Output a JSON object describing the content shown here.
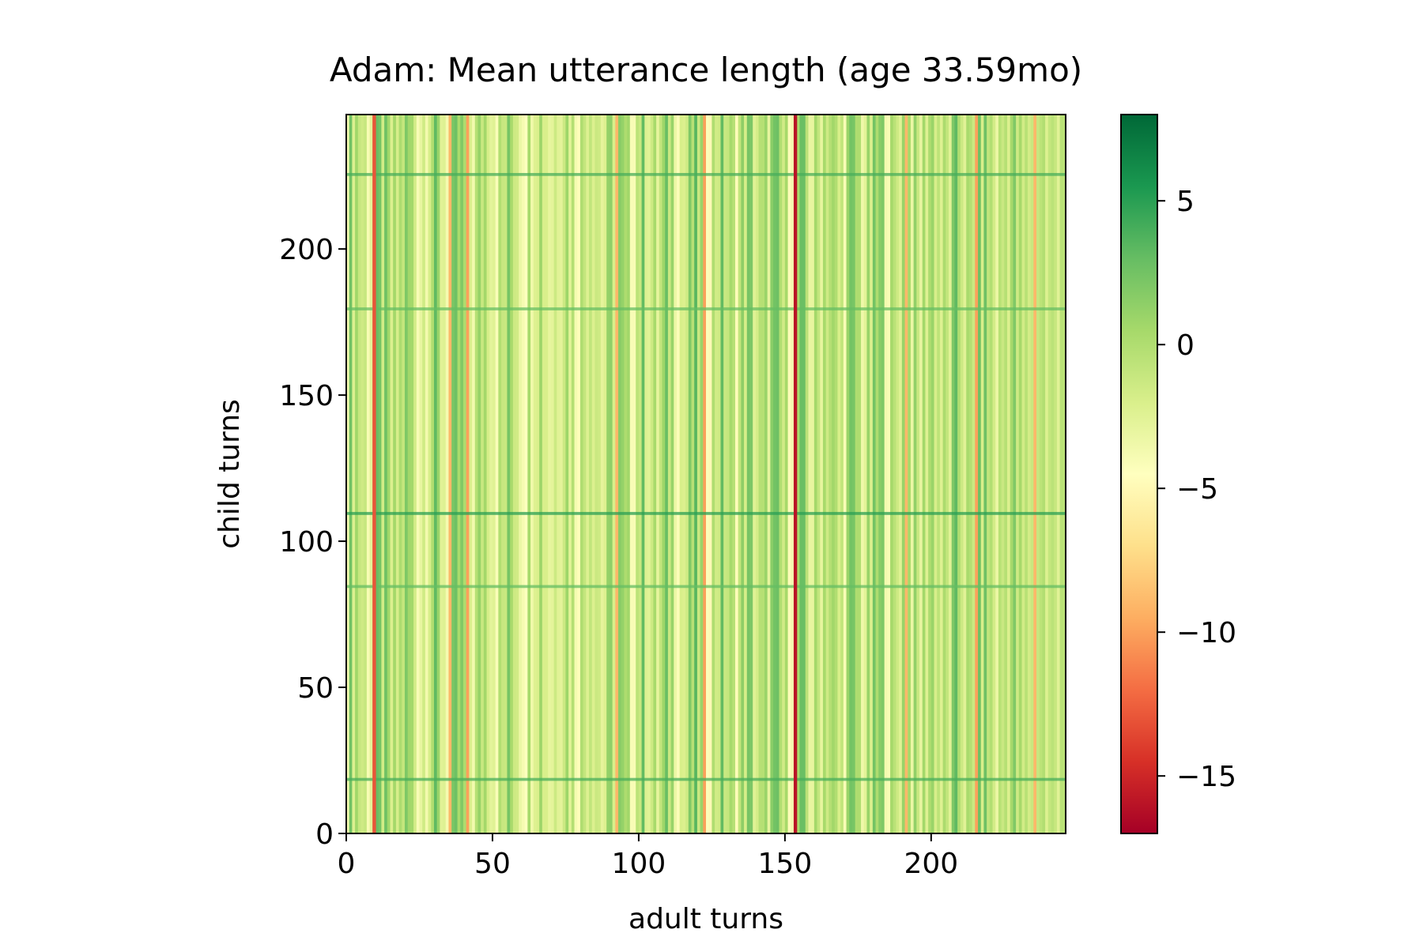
{
  "chart_data": {
    "type": "heatmap",
    "title": "Adam: Mean utterance length (age 33.59mo)",
    "xlabel": "adult turns",
    "ylabel": "child turns",
    "colormap": "RdYlGn",
    "colormap_stops": [
      "#a50026",
      "#d73027",
      "#f46d43",
      "#fdae61",
      "#fee08b",
      "#ffffbf",
      "#d9ef8b",
      "#a6d96a",
      "#66bd63",
      "#1a9850",
      "#006837"
    ],
    "xlim": [
      0,
      246
    ],
    "ylim": [
      0,
      246
    ],
    "x_ticks": [
      0,
      50,
      100,
      150,
      200
    ],
    "x_tick_labels": [
      "0",
      "50",
      "100",
      "150",
      "200"
    ],
    "y_ticks": [
      0,
      50,
      100,
      150,
      200
    ],
    "y_tick_labels": [
      "0",
      "50",
      "100",
      "150",
      "200"
    ],
    "colorbar": {
      "range": [
        -17,
        8
      ],
      "ticks": [
        5,
        0,
        -5,
        -10,
        -15
      ],
      "tick_labels": [
        "5",
        "0",
        "−5",
        "−10",
        "−15"
      ]
    },
    "notable_columns": [
      {
        "adult_turn": 9,
        "value": -13
      },
      {
        "adult_turn": 35,
        "value": -9
      },
      {
        "adult_turn": 41,
        "value": -10
      },
      {
        "adult_turn": 92,
        "value": -9
      },
      {
        "adult_turn": 122,
        "value": -10
      },
      {
        "adult_turn": 153,
        "value": -16
      },
      {
        "adult_turn": 191,
        "value": -9
      },
      {
        "adult_turn": 215,
        "value": -10
      },
      {
        "adult_turn": 235,
        "value": -9
      }
    ],
    "notable_rows": [
      {
        "child_turn": 18,
        "value": 4
      },
      {
        "child_turn": 84,
        "value": 3
      },
      {
        "child_turn": 109,
        "value": 5
      },
      {
        "child_turn": 179,
        "value": 3
      },
      {
        "child_turn": 225,
        "value": 4
      }
    ],
    "grid": false
  }
}
